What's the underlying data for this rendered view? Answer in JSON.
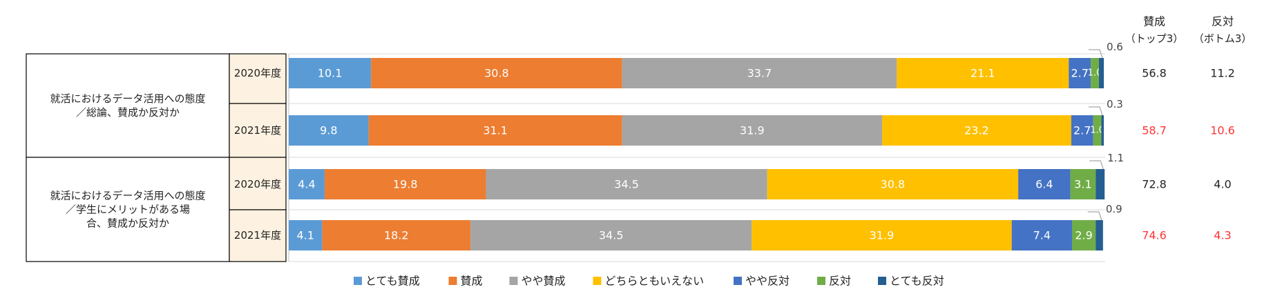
{
  "chart_data": {
    "type": "bar",
    "orientation": "horizontal",
    "stacked": "percent",
    "xlim": [
      0,
      100
    ],
    "grid": false,
    "legend_position": "bottom",
    "groups": [
      {
        "label": "就活におけるデータ活用への態度／総論、賛成か反対か",
        "rows": [
          0,
          1
        ]
      },
      {
        "label": "就活におけるデータ活用への態度／学生にメリットがある場合、賛成か反対か",
        "rows": [
          2,
          3
        ]
      }
    ],
    "categories": [
      "2020年度",
      "2021年度",
      "2020年度",
      "2021年度"
    ],
    "series": [
      {
        "name": "とても賛成",
        "color": "#5b9bd5",
        "values": [
          10.1,
          9.8,
          4.4,
          4.1
        ]
      },
      {
        "name": "賛成",
        "color": "#ed7d31",
        "values": [
          30.8,
          31.1,
          19.8,
          18.2
        ]
      },
      {
        "name": "やや賛成",
        "color": "#a5a5a5",
        "values": [
          33.7,
          31.9,
          34.5,
          34.5
        ]
      },
      {
        "name": "どちらともいえない",
        "color": "#ffc000",
        "values": [
          21.1,
          23.2,
          30.8,
          31.9
        ]
      },
      {
        "name": "やや反対",
        "color": "#4472c4",
        "values": [
          2.7,
          2.7,
          6.4,
          7.4
        ]
      },
      {
        "name": "反対",
        "color": "#70ad47",
        "values": [
          1.0,
          1.0,
          3.1,
          2.9
        ]
      },
      {
        "name": "とても反対",
        "color": "#255e91",
        "values": [
          0.6,
          0.3,
          1.1,
          0.9
        ]
      }
    ],
    "callout_labels": [
      "0.6",
      "0.3",
      "1.1",
      "0.9"
    ],
    "summary_headers": [
      {
        "title": "賛成",
        "subtitle": "（トップ3）"
      },
      {
        "title": "反対",
        "subtitle": "（ボトム3）"
      }
    ],
    "summary_values": [
      {
        "top3": "56.8",
        "bottom3": "11.2",
        "highlight": false
      },
      {
        "top3": "58.7",
        "bottom3": "10.6",
        "highlight": true
      },
      {
        "top3": "72.8",
        "bottom3": "4.0",
        "highlight": false
      },
      {
        "top3": "74.6",
        "bottom3": "4.3",
        "highlight": true
      }
    ],
    "colors": {
      "highlight": "#ff3333",
      "label_text_light": "#ffffff",
      "label_text_dark": "#333333"
    }
  }
}
